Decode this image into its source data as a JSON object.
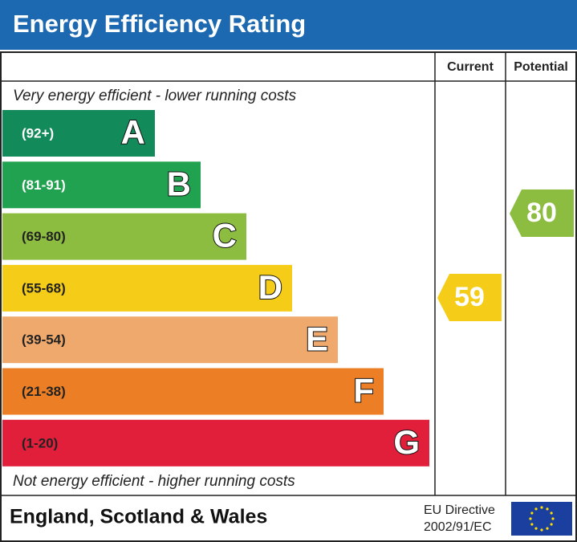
{
  "title": "Energy Efficiency Rating",
  "columns": {
    "current": "Current",
    "potential": "Potential"
  },
  "top_note": "Very energy efficient - lower running costs",
  "bottom_note": "Not energy efficient - higher running costs",
  "bands": [
    {
      "range": "(92+)",
      "letter": "A",
      "color": "#138a5a"
    },
    {
      "range": "(81-91)",
      "letter": "B",
      "color": "#21a250"
    },
    {
      "range": "(69-80)",
      "letter": "C",
      "color": "#8cbd40"
    },
    {
      "range": "(55-68)",
      "letter": "D",
      "color": "#f5cc18"
    },
    {
      "range": "(39-54)",
      "letter": "E",
      "color": "#f0a96c"
    },
    {
      "range": "(21-38)",
      "letter": "F",
      "color": "#ec7f26"
    },
    {
      "range": "(1-20)",
      "letter": "G",
      "color": "#e11f3b"
    }
  ],
  "current": {
    "value": 59,
    "color": "#f5cc18"
  },
  "potential": {
    "value": 80,
    "color": "#8cbd40"
  },
  "footer": {
    "region": "England, Scotland & Wales",
    "directive_line1": "EU Directive",
    "directive_line2": "2002/91/EC"
  }
}
